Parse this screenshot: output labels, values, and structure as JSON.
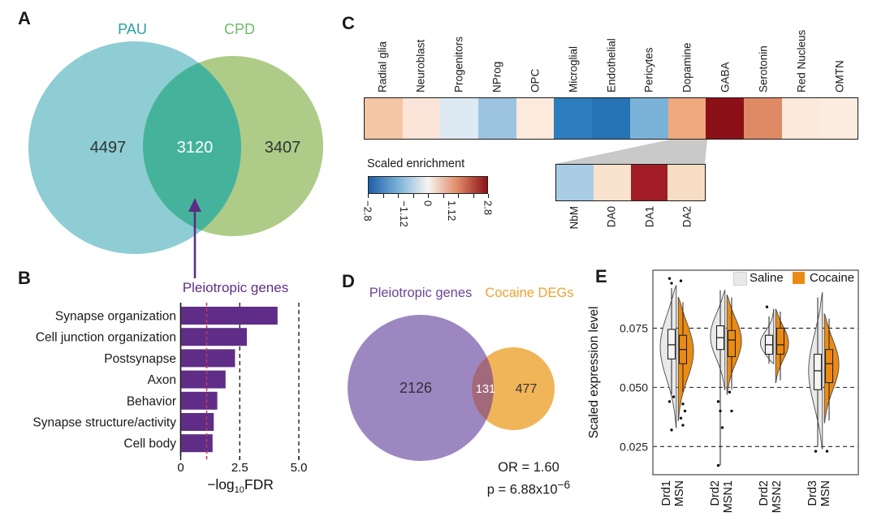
{
  "panels": {
    "A": {
      "label": "A",
      "set1": {
        "name": "PAU",
        "count": "4497",
        "color": "#8ecdd3",
        "name_color": "#2ba0a4"
      },
      "set2": {
        "name": "CPD",
        "count": "3407",
        "color": "#aecb87",
        "name_color": "#6fbb6b"
      },
      "overlap": {
        "count": "3120",
        "color": "#45b39c"
      },
      "arrow_color": "#5b2d83"
    },
    "B": {
      "label": "B",
      "title": "Pleiotropic genes",
      "title_color": "#5f2d87",
      "bar_color": "#5f2d87",
      "xlabel": {
        "prefix": "−log",
        "sub": "10",
        "suffix": "FDR"
      },
      "xtick_labels": [
        "0",
        "2.5",
        "5.0"
      ]
    },
    "C": {
      "label": "C",
      "legend_title": "Scaled enrichment",
      "scale_tick_labels": [
        "−2.8",
        "−1.12",
        "0",
        "1.12",
        "2.8"
      ],
      "gradient": [
        "#1f5fa8",
        "#7ab2d8",
        "#f7f4f1",
        "#e08a65",
        "#8c1117"
      ]
    },
    "D": {
      "label": "D",
      "set1": {
        "name": "Pleiotropic genes",
        "count": "2126",
        "color": "#9d87c0",
        "name_color": "#6b4596"
      },
      "set2": {
        "name": "Cocaine DEGs",
        "count": "477",
        "color": "#f0b558",
        "name_color": "#f0a232"
      },
      "overlap": {
        "count": "131",
        "color": "#a2697b"
      },
      "stats": {
        "or": "OR = 1.60",
        "p_base": "p = 6.88x10",
        "p_exp": "−6"
      }
    },
    "E": {
      "label": "E",
      "ylabel": "Scaled expression level",
      "ytick_labels": [
        "0.075",
        "0.050",
        "0.025"
      ],
      "legend": [
        {
          "label": "Saline",
          "color": "#e9e9e9"
        },
        {
          "label": "Cocaine",
          "color": "#ec8b13"
        }
      ]
    }
  },
  "chart_data": [
    {
      "id": "A",
      "type": "venn",
      "sets": [
        {
          "label": "PAU",
          "unique": 4497
        },
        {
          "label": "CPD",
          "unique": 3407
        }
      ],
      "overlap": 3120,
      "annotation": "Pleiotropic genes"
    },
    {
      "id": "B",
      "type": "bar",
      "orientation": "horizontal",
      "title": "Pleiotropic genes",
      "categories": [
        "Synapse organization",
        "Cell junction organization",
        "Postsynapse",
        "Axon",
        "Behavior",
        "Synapse structure/activity",
        "Cell body"
      ],
      "values": [
        4.1,
        2.8,
        2.3,
        1.9,
        1.55,
        1.4,
        1.35
      ],
      "xlabel": "-log10 FDR",
      "xlim": [
        0,
        5.0
      ],
      "xticks": [
        0,
        2.5,
        5.0
      ],
      "gridlines": [
        2.5,
        5.0
      ],
      "threshold_line": 1.1,
      "threshold_color": "#c43a52"
    },
    {
      "id": "C",
      "type": "heatmap",
      "legend_title": "Scaled enrichment",
      "scale_range": [
        -2.8,
        2.8
      ],
      "scale_ticks": [
        -2.8,
        -1.12,
        0,
        1.12,
        2.8
      ],
      "columns": [
        {
          "label": "Radial glia",
          "color": "#f5c6a4",
          "value_estimate": 0.7
        },
        {
          "label": "Neuroblast",
          "color": "#fbe5d8",
          "value_estimate": 0.2
        },
        {
          "label": "Progenitors",
          "color": "#dde9f3",
          "value_estimate": -0.3
        },
        {
          "label": "NProg",
          "color": "#9cc4e0",
          "value_estimate": -1.0
        },
        {
          "label": "OPC",
          "color": "#fceadd",
          "value_estimate": 0.15
        },
        {
          "label": "Microglial",
          "color": "#2e7dbc",
          "value_estimate": -2.2
        },
        {
          "label": "Endothelial",
          "color": "#2673b5",
          "value_estimate": -2.4
        },
        {
          "label": "Pericytes",
          "color": "#7ab2d8",
          "value_estimate": -1.3
        },
        {
          "label": "Dopamine",
          "color": "#f0a87f",
          "value_estimate": 1.1
        },
        {
          "label": "GABA",
          "color": "#8c1117",
          "value_estimate": 2.8
        },
        {
          "label": "Serotonin",
          "color": "#e08a65",
          "value_estimate": 1.4
        },
        {
          "label": "Red Nucleus",
          "color": "#fbe9dc",
          "value_estimate": 0.2
        },
        {
          "label": "OMTN",
          "color": "#fcebdf",
          "value_estimate": 0.15
        }
      ],
      "expanded_from": "Dopamine",
      "subcolumns": [
        {
          "label": "NbM",
          "color": "#a8cde4",
          "value_estimate": -0.9
        },
        {
          "label": "DA0",
          "color": "#f9e2ce",
          "value_estimate": 0.3
        },
        {
          "label": "DA1",
          "color": "#a11c24",
          "value_estimate": 2.6
        },
        {
          "label": "DA2",
          "color": "#f7ddc4",
          "value_estimate": 0.4
        }
      ]
    },
    {
      "id": "D",
      "type": "venn",
      "sets": [
        {
          "label": "Pleiotropic genes",
          "unique": 2126
        },
        {
          "label": "Cocaine DEGs",
          "unique": 477
        }
      ],
      "overlap": 131,
      "odds_ratio": 1.6,
      "p_value": "6.88x10-6"
    },
    {
      "id": "E",
      "type": "violin",
      "ylabel": "Scaled expression level",
      "ylim": [
        0.013,
        0.0995
      ],
      "yticks": [
        0.075,
        0.05,
        0.025
      ],
      "series_names": [
        "Saline",
        "Cocaine"
      ],
      "groups": [
        {
          "labels": [
            "Drd1",
            "MSN"
          ],
          "saline": {
            "violin": [
              0.033,
              0.093
            ],
            "mode": 0.068,
            "width": 1.0,
            "box": [
              0.062,
              0.068,
              0.0745
            ],
            "whiskers": [
              0.047,
              0.092
            ],
            "outliers": [
              0.096,
              0.094,
              0.046,
              0.044,
              0.032
            ]
          },
          "cocaine": {
            "violin": [
              0.036,
              0.088
            ],
            "mode": 0.066,
            "width": 0.95,
            "box": [
              0.06,
              0.066,
              0.072
            ],
            "whiskers": [
              0.048,
              0.086
            ],
            "outliers": [
              0.095,
              0.043,
              0.04,
              0.037,
              0.034
            ]
          }
        },
        {
          "labels": [
            "Drd2",
            "MSN1"
          ],
          "saline": {
            "violin": [
              0.049,
              0.091
            ],
            "mode": 0.072,
            "width": 0.9,
            "box": [
              0.066,
              0.071,
              0.076
            ],
            "whiskers": [
              0.017,
              0.091
            ],
            "outliers": [
              0.044,
              0.04,
              0.033,
              0.017
            ]
          },
          "cocaine": {
            "violin": [
              0.047,
              0.089
            ],
            "mode": 0.07,
            "width": 0.9,
            "box": [
              0.063,
              0.07,
              0.074
            ],
            "whiskers": [
              0.049,
              0.088
            ],
            "outliers": [
              0.048,
              0.04
            ]
          }
        },
        {
          "labels": [
            "Drd2",
            "MSN2"
          ],
          "saline": {
            "violin": [
              0.06,
              0.083
            ],
            "mode": 0.068,
            "width": 0.85,
            "box": [
              0.064,
              0.068,
              0.072
            ],
            "whiskers": [
              0.06,
              0.08
            ],
            "outliers": [
              0.084
            ]
          },
          "cocaine": {
            "violin": [
              0.052,
              0.083
            ],
            "mode": 0.069,
            "width": 0.8,
            "box": [
              0.064,
              0.068,
              0.075
            ],
            "whiskers": [
              0.053,
              0.082
            ],
            "outliers": []
          }
        },
        {
          "labels": [
            "Drd3",
            "MSN"
          ],
          "saline": {
            "violin": [
              0.024,
              0.09
            ],
            "mode": 0.057,
            "width": 0.85,
            "box": [
              0.049,
              0.057,
              0.064
            ],
            "whiskers": [
              0.025,
              0.088
            ],
            "outliers": [
              0.023
            ]
          },
          "cocaine": {
            "violin": [
              0.035,
              0.081
            ],
            "mode": 0.06,
            "width": 0.9,
            "box": [
              0.052,
              0.06,
              0.066
            ],
            "whiskers": [
              0.036,
              0.079
            ],
            "outliers": [
              0.023
            ]
          }
        }
      ]
    }
  ]
}
